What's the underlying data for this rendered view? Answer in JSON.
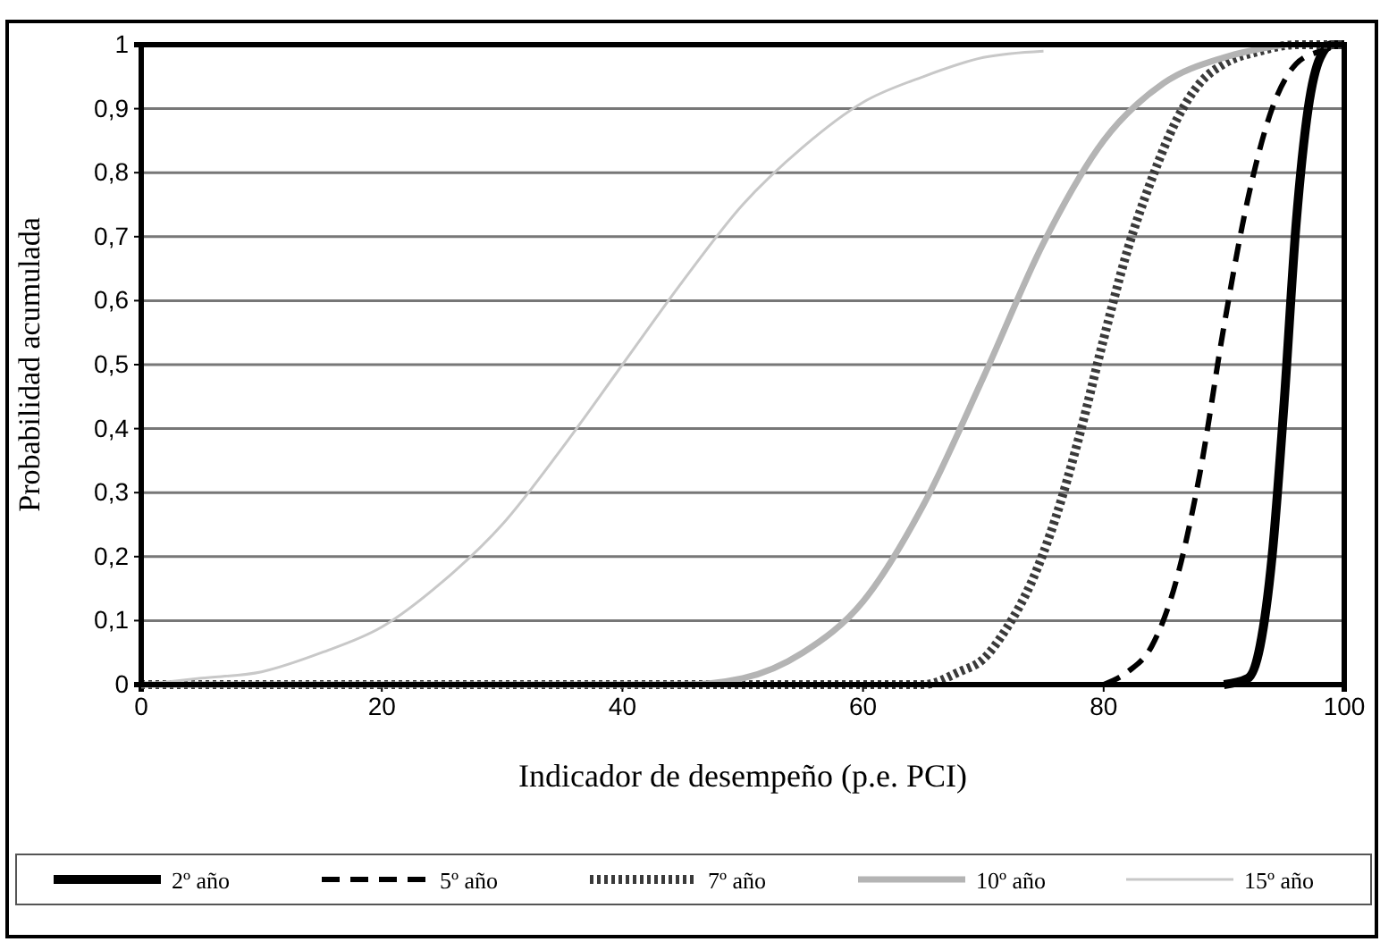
{
  "chart_data": {
    "type": "line",
    "xlabel": "Indicador de desempeño (p.e. PCI)",
    "ylabel": "Probabilidad acumulada",
    "xlim": [
      0,
      100
    ],
    "xticks": [
      0,
      20,
      40,
      60,
      80,
      100
    ],
    "ylim": [
      0,
      1
    ],
    "yticks": [
      0,
      {
        "value": 0.1,
        "label": "0,1"
      },
      {
        "value": 0.2,
        "label": "0,2"
      },
      {
        "value": 0.3,
        "label": "0,3"
      },
      {
        "value": 0.4,
        "label": "0,4"
      },
      {
        "value": 0.5,
        "label": "0,5"
      },
      {
        "value": 0.6,
        "label": "0,6"
      },
      {
        "value": 0.7,
        "label": "0,7"
      },
      {
        "value": 0.8,
        "label": "0,8"
      },
      {
        "value": 0.9,
        "label": "0,9"
      },
      1
    ],
    "grid": "y",
    "legend": "bottom",
    "series": [
      {
        "name": "2º año",
        "color": "#000000",
        "line_style": "solid",
        "x": [
          90,
          92,
          93,
          94,
          95,
          96,
          97,
          98,
          99,
          100
        ],
        "values": [
          0,
          0.01,
          0.06,
          0.2,
          0.44,
          0.72,
          0.9,
          0.98,
          1,
          1
        ]
      },
      {
        "name": "5º año",
        "color": "#000000",
        "line_style": "dashed",
        "x": [
          80,
          82,
          84,
          86,
          88,
          90,
          92,
          94,
          96,
          98,
          100
        ],
        "values": [
          0,
          0.02,
          0.06,
          0.16,
          0.33,
          0.56,
          0.76,
          0.9,
          0.97,
          0.99,
          1
        ]
      },
      {
        "name": "7º año",
        "color": "#3a3a3a",
        "line_style": "dotted",
        "x": [
          0,
          60,
          65,
          68,
          70,
          72,
          74,
          76,
          78,
          80,
          82,
          84,
          86,
          88,
          90,
          93,
          96,
          100
        ],
        "values": [
          0,
          0,
          0,
          0.02,
          0.04,
          0.09,
          0.16,
          0.26,
          0.39,
          0.54,
          0.68,
          0.79,
          0.88,
          0.94,
          0.97,
          0.99,
          1,
          1
        ]
      },
      {
        "name": "10º año",
        "color": "#b4b4b4",
        "line_style": "solid",
        "x": [
          0,
          40,
          45,
          50,
          55,
          60,
          65,
          70,
          75,
          80,
          85,
          90,
          95
        ],
        "values": [
          0,
          0,
          0,
          0.01,
          0.05,
          0.13,
          0.28,
          0.48,
          0.69,
          0.85,
          0.94,
          0.98,
          1
        ]
      },
      {
        "name": "15º año",
        "color": "#c8c8c8",
        "line_style": "solid",
        "x": [
          0,
          5,
          10,
          15,
          20,
          25,
          30,
          35,
          40,
          45,
          50,
          55,
          60,
          65,
          70,
          75
        ],
        "values": [
          0,
          0.01,
          0.02,
          0.05,
          0.09,
          0.16,
          0.25,
          0.37,
          0.5,
          0.63,
          0.75,
          0.84,
          0.91,
          0.95,
          0.98,
          0.99
        ]
      }
    ]
  }
}
